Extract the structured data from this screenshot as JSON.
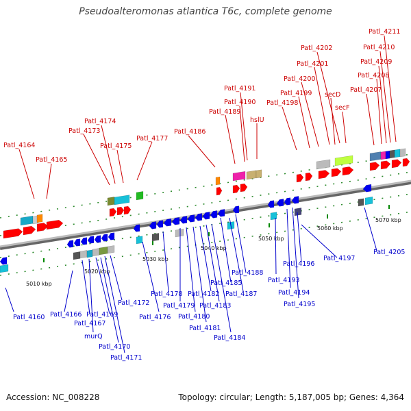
{
  "title": "Pseudoalteromonas atlantica T6c, complete genome",
  "footer": {
    "accession": "Accession: NC_008228",
    "stats": "Topology: circular; Length: 5,187,005 bp; Genes: 4,364"
  },
  "colors": {
    "forward_label": "#cc0000",
    "reverse_label": "#0000cc",
    "forward_gene": "#ff0000",
    "reverse_gene": "#0000ee",
    "backbone": "#999999",
    "tick": "#008800"
  },
  "kbp_markers": [
    "5010 kbp",
    "5020 kbp",
    "5030 kbp",
    "5040 kbp",
    "5050 kbp",
    "5060 kbp",
    "5070 kbp"
  ],
  "forward_labels": [
    "Patl_4164",
    "Patl_4165",
    "Patl_4173",
    "Patl_4174",
    "Patl_4175",
    "Patl_4177",
    "Patl_4186",
    "Patl_4189",
    "Patl_4190",
    "Patl_4191",
    "hslU",
    "Patl_4198",
    "Patl_4199",
    "Patl_4200",
    "Patl_4201",
    "Patl_4202",
    "secD",
    "secF",
    "Patl_4207",
    "Patl_4208",
    "Patl_4209",
    "Patl_4210",
    "Patl_4211"
  ],
  "reverse_labels": [
    "Patl_4160",
    "Patl_4166",
    "Patl_4167",
    "murQ",
    "Patl_4169",
    "Patl_4170",
    "Patl_4171",
    "Patl_4172",
    "Patl_4176",
    "Patl_4178",
    "Patl_4179",
    "Patl_4180",
    "Patl_4181",
    "Patl_4182",
    "Patl_4183",
    "Patl_4184",
    "Patl_4185",
    "Patl_4187",
    "Patl_4188",
    "Patl_4193",
    "Patl_4194",
    "Patl_4195",
    "Patl_4196",
    "Patl_4197",
    "Patl_4205"
  ]
}
